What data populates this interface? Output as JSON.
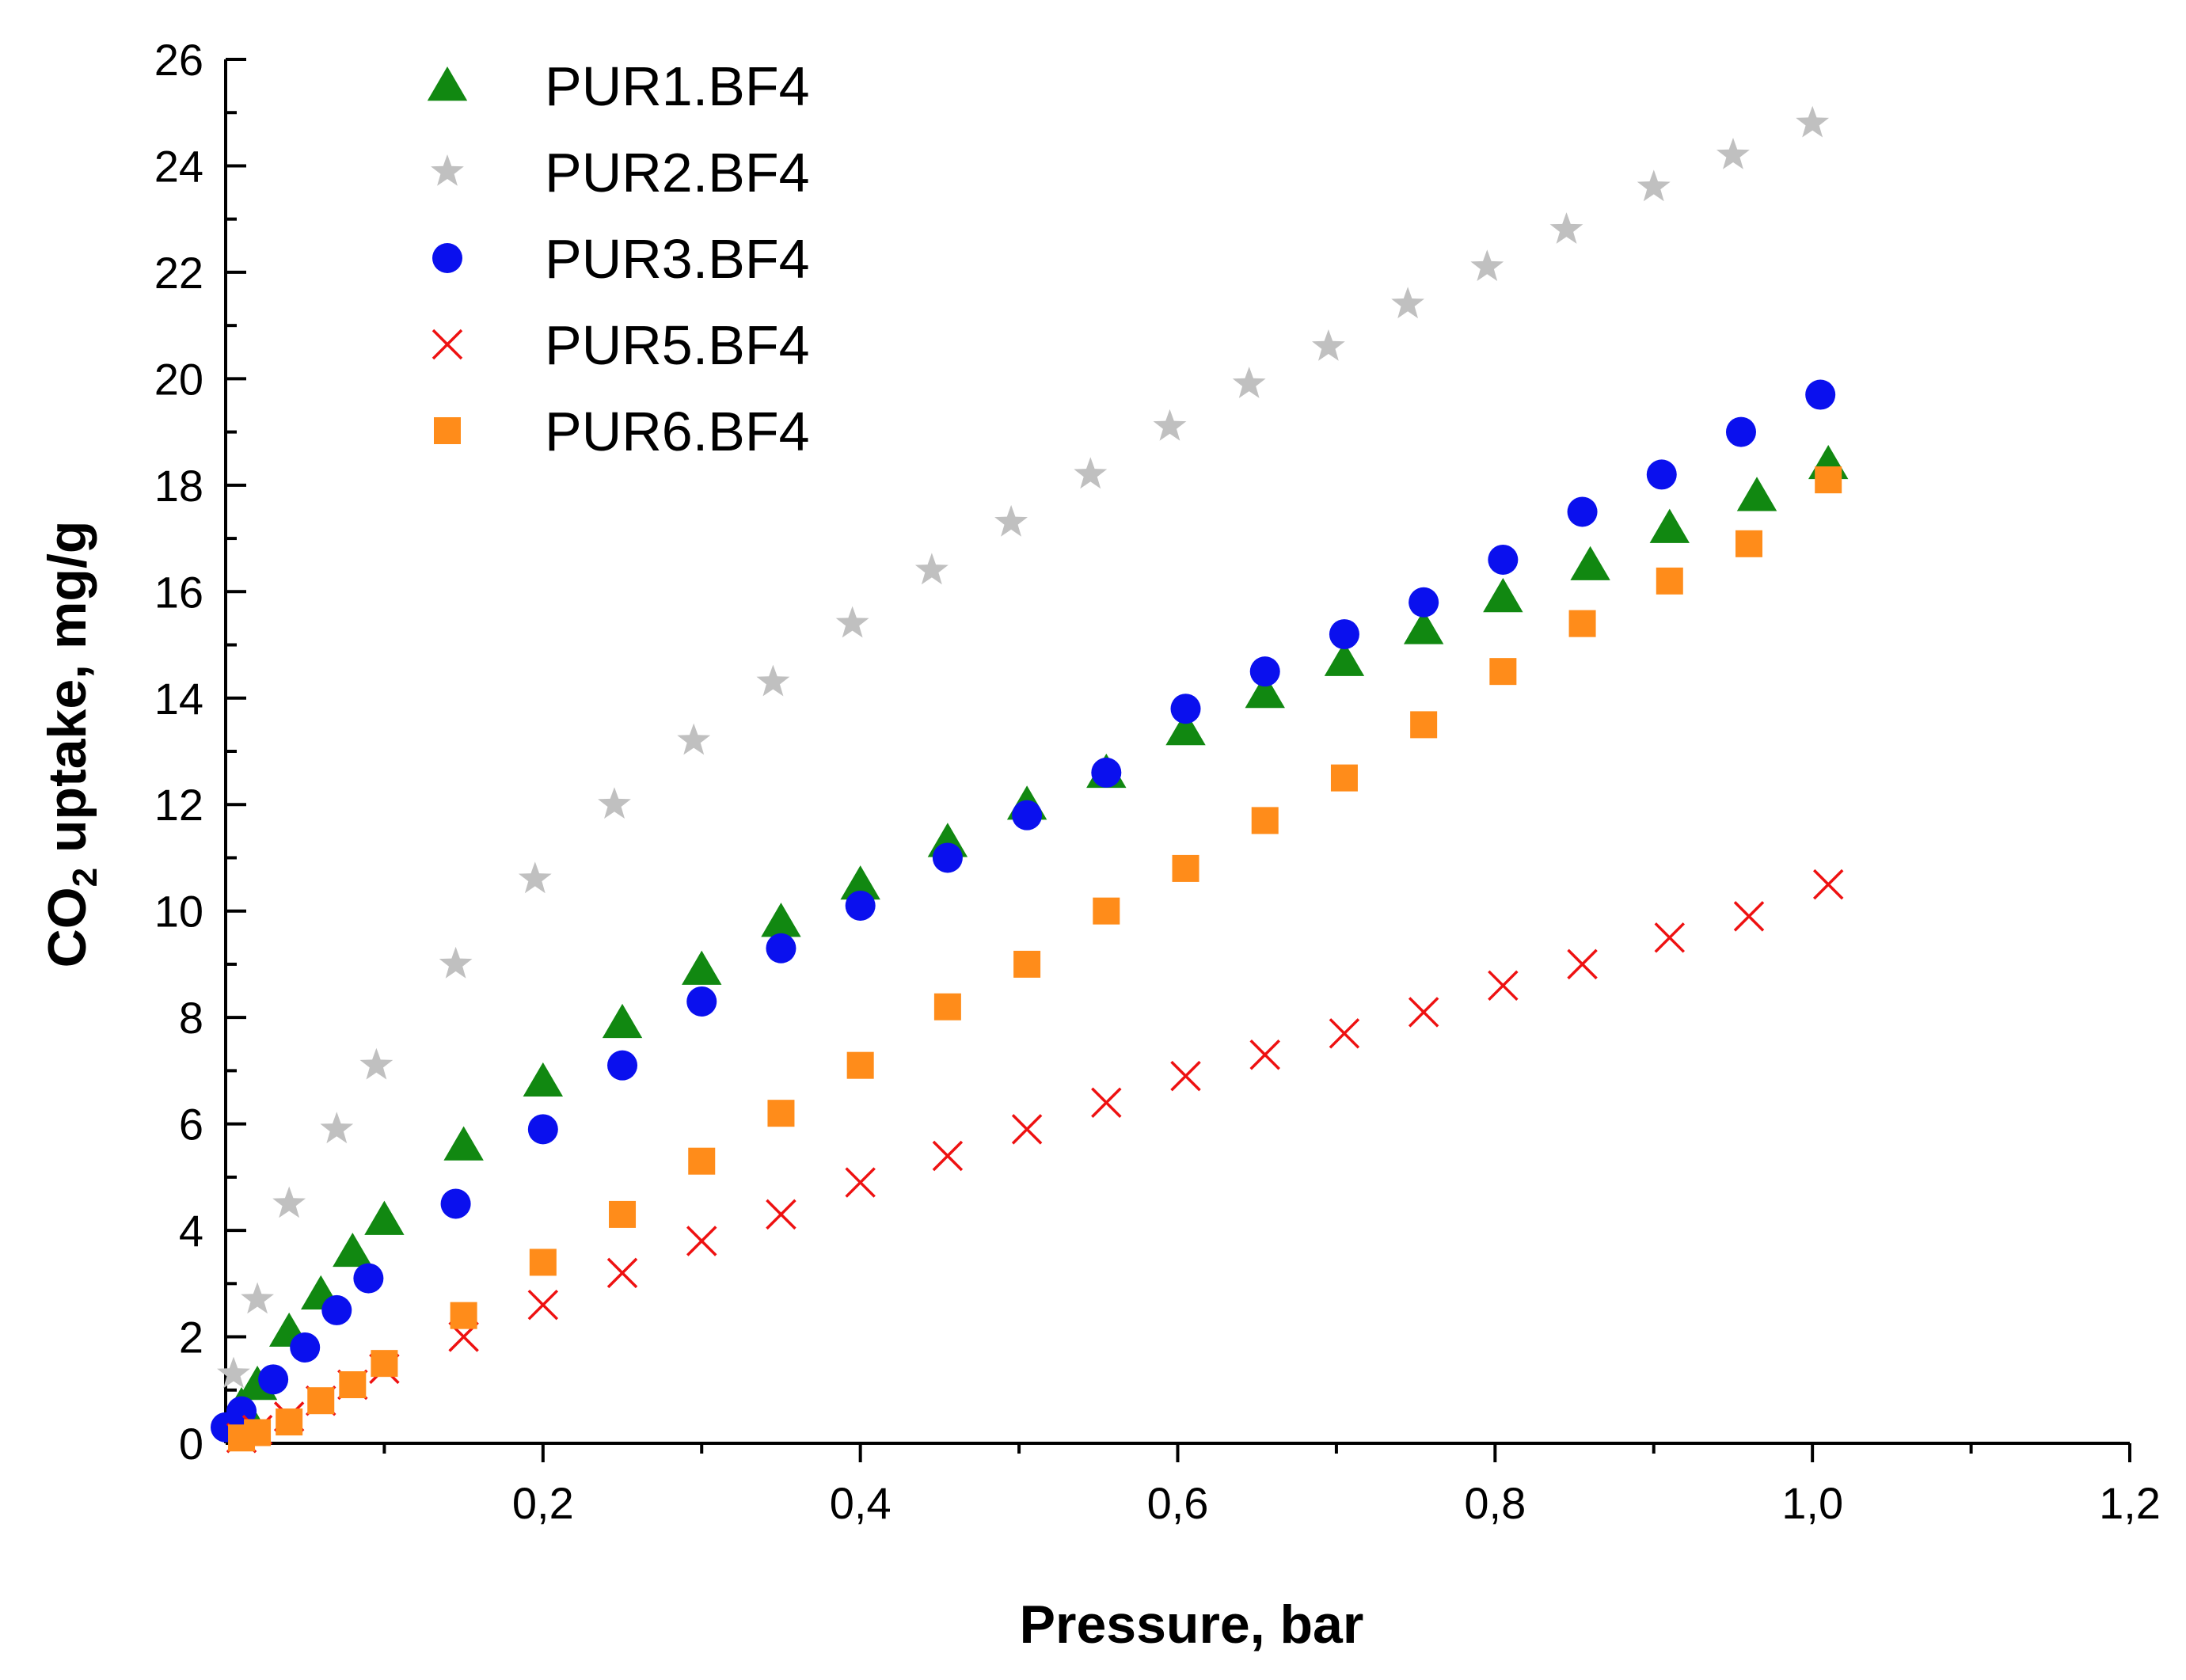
{
  "chart_data": {
    "type": "scatter",
    "title": "",
    "xlabel": "Pressure, bar",
    "ylabel": {
      "prefix": "CO",
      "subscript": "2",
      "suffix": " uptake,  mg/g"
    },
    "xlim": [
      0.0,
      1.2
    ],
    "ylim": [
      0,
      26
    ],
    "x_ticks": [
      0.2,
      0.4,
      0.6,
      0.8,
      1.0,
      1.2
    ],
    "x_tick_labels": [
      "0,2",
      "0,4",
      "0,6",
      "0,8",
      "1,0",
      "1,2"
    ],
    "y_ticks": [
      0,
      2,
      4,
      6,
      8,
      10,
      12,
      14,
      16,
      18,
      20,
      22,
      24,
      26
    ],
    "y_tick_labels": [
      "0",
      "2",
      "4",
      "6",
      "8",
      "10",
      "12",
      "14",
      "16",
      "18",
      "20",
      "22",
      "24",
      "26"
    ],
    "grid": false,
    "legend_position": "top-left",
    "series": [
      {
        "name": "PUR1.BF4",
        "marker": "triangle",
        "color": "#118811",
        "x": [
          0.01,
          0.02,
          0.04,
          0.06,
          0.08,
          0.1,
          0.15,
          0.2,
          0.25,
          0.3,
          0.35,
          0.4,
          0.455,
          0.505,
          0.555,
          0.605,
          0.655,
          0.705,
          0.755,
          0.805,
          0.86,
          0.91,
          0.965,
          1.01
        ],
        "y": [
          0.7,
          1.1,
          2.1,
          2.8,
          3.6,
          4.2,
          5.6,
          6.8,
          7.9,
          8.9,
          9.8,
          10.5,
          11.3,
          12.0,
          12.6,
          13.4,
          14.1,
          14.7,
          15.3,
          15.9,
          16.5,
          17.2,
          17.8,
          18.4
        ]
      },
      {
        "name": "PUR2.BF4",
        "marker": "star",
        "color": "#c0c0c0",
        "x": [
          0.005,
          0.02,
          0.04,
          0.07,
          0.095,
          0.145,
          0.195,
          0.245,
          0.295,
          0.345,
          0.395,
          0.445,
          0.495,
          0.545,
          0.595,
          0.645,
          0.695,
          0.745,
          0.795,
          0.845,
          0.9,
          0.95,
          1.0
        ],
        "y": [
          1.3,
          2.7,
          4.5,
          5.9,
          7.1,
          9.0,
          10.6,
          12.0,
          13.2,
          14.3,
          15.4,
          16.4,
          17.3,
          18.2,
          19.1,
          19.9,
          20.6,
          21.4,
          22.1,
          22.8,
          23.6,
          24.2,
          24.8
        ]
      },
      {
        "name": "PUR3.BF4",
        "marker": "circle",
        "color": "#0a10ee",
        "x": [
          0.0,
          0.01,
          0.03,
          0.05,
          0.07,
          0.09,
          0.145,
          0.2,
          0.25,
          0.3,
          0.35,
          0.4,
          0.455,
          0.505,
          0.555,
          0.605,
          0.655,
          0.705,
          0.755,
          0.805,
          0.855,
          0.905,
          0.955,
          1.005
        ],
        "y": [
          0.3,
          0.6,
          1.2,
          1.8,
          2.5,
          3.1,
          4.5,
          5.9,
          7.1,
          8.3,
          9.3,
          10.1,
          11.0,
          11.8,
          12.6,
          13.8,
          14.5,
          15.2,
          15.8,
          16.6,
          17.5,
          18.2,
          19.0,
          19.7
        ]
      },
      {
        "name": "PUR5.BF4",
        "marker": "cross",
        "color": "#ee1111",
        "x": [
          0.01,
          0.02,
          0.04,
          0.06,
          0.08,
          0.1,
          0.15,
          0.2,
          0.25,
          0.3,
          0.35,
          0.4,
          0.455,
          0.505,
          0.555,
          0.605,
          0.655,
          0.705,
          0.755,
          0.805,
          0.855,
          0.91,
          0.96,
          1.01
        ],
        "y": [
          0.1,
          0.25,
          0.5,
          0.8,
          1.1,
          1.4,
          2.0,
          2.6,
          3.2,
          3.8,
          4.3,
          4.9,
          5.4,
          5.9,
          6.4,
          6.9,
          7.3,
          7.7,
          8.1,
          8.6,
          9.0,
          9.5,
          9.9,
          10.5
        ]
      },
      {
        "name": "PUR6.BF4",
        "marker": "square",
        "color": "#ff8c1a",
        "x": [
          0.01,
          0.02,
          0.04,
          0.06,
          0.08,
          0.1,
          0.15,
          0.2,
          0.25,
          0.3,
          0.35,
          0.4,
          0.455,
          0.505,
          0.555,
          0.605,
          0.655,
          0.705,
          0.755,
          0.805,
          0.855,
          0.91,
          0.96,
          1.01
        ],
        "y": [
          0.1,
          0.2,
          0.4,
          0.8,
          1.1,
          1.5,
          2.4,
          3.4,
          4.3,
          5.3,
          6.2,
          7.1,
          8.2,
          9.0,
          10.0,
          10.8,
          11.7,
          12.5,
          13.5,
          14.5,
          15.4,
          16.2,
          16.9,
          18.1
        ]
      }
    ]
  }
}
